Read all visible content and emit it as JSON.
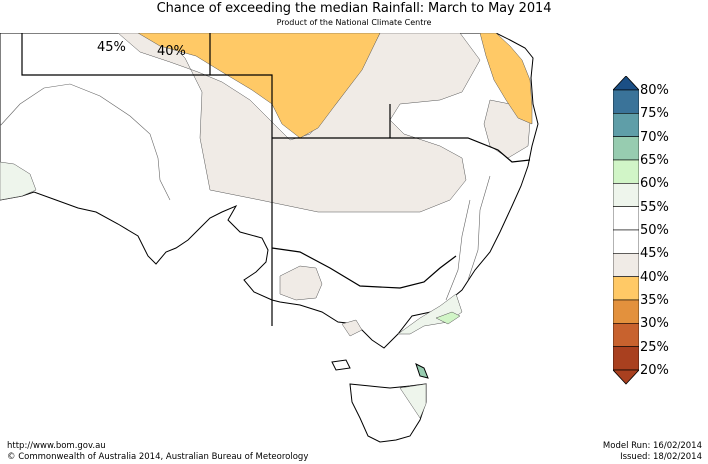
{
  "title": "Chance of exceeding the median Rainfall: March to May 2014",
  "subtitle": "Product of the National Climate Centre",
  "map_labels": {
    "contour_45": "45%",
    "contour_40": "40%"
  },
  "legend": {
    "ticks": [
      "80%",
      "75%",
      "70%",
      "65%",
      "60%",
      "55%",
      "50%",
      "45%",
      "40%",
      "35%",
      "30%",
      "25%",
      "20%"
    ],
    "colors": [
      "#1b4f85",
      "#3a7399",
      "#5f9ea8",
      "#97ccb0",
      "#d1f5c7",
      "#eef5ec",
      "#ffffff",
      "#ffffff",
      "#f0ebe6",
      "#ffc966",
      "#e3913d",
      "#c8622e",
      "#a9401f"
    ]
  },
  "footer": {
    "url": "http://www.bom.gov.au",
    "copyright": "©  Commonwealth of Australia 2014, Australian Bureau of Meteorology",
    "model_run": "Model Run: 16/02/2014",
    "issued": "Issued: 18/02/2014"
  }
}
